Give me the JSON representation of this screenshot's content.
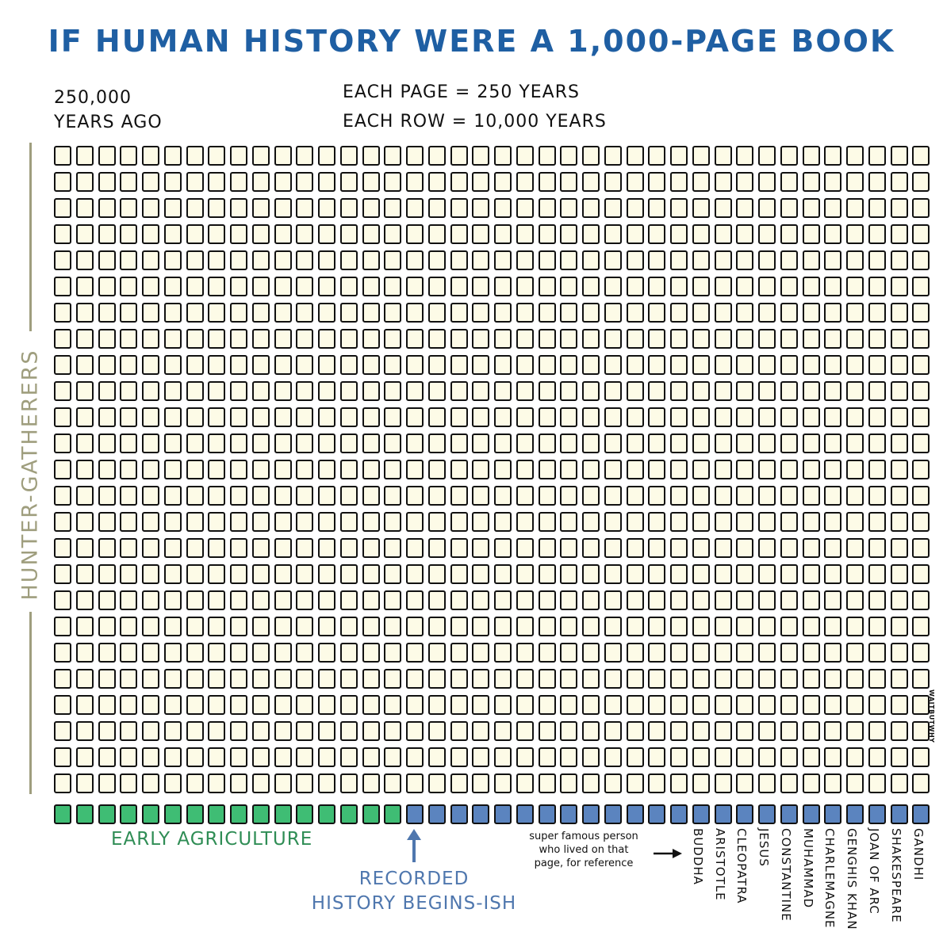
{
  "title": "IF HUMAN HISTORY WERE A 1,000-PAGE BOOK",
  "start_label_line1": "250,000",
  "start_label_line2": "YEARS AGO",
  "scale_line1": "EACH PAGE = 250 YEARS",
  "scale_line2": "EACH ROW = 10,000 YEARS",
  "side_label": "HUNTER-GATHERERS",
  "grid": {
    "rows": 25,
    "pages_per_row": 40,
    "early_agriculture_pages": 16,
    "recorded_history_pages": 24
  },
  "colors": {
    "page": "#fdfbe7",
    "early_agriculture": "#3fbd74",
    "recorded_history": "#5b84bf",
    "title": "#1f5fa3",
    "hunter_gatherers": "#9f9e7e"
  },
  "early_agriculture_label": "EARLY AGRICULTURE",
  "recorded_history_label_line1": "RECORDED",
  "recorded_history_label_line2": "HISTORY BEGINS-ISH",
  "reference_note_line1": "super famous person",
  "reference_note_line2": "who lived on that",
  "reference_note_line3": "page, for reference",
  "people": [
    "BUDDHA",
    "ARISTOTLE",
    "CLEOPATRA",
    "JESUS",
    "CONSTANTINE",
    "MUHAMMAD",
    "CHARLEMAGNE",
    "GENGHIS KHAN",
    "JOAN OF ARC",
    "SHAKESPEARE",
    "GANDHI"
  ],
  "credit": "WAITBUTWHY"
}
